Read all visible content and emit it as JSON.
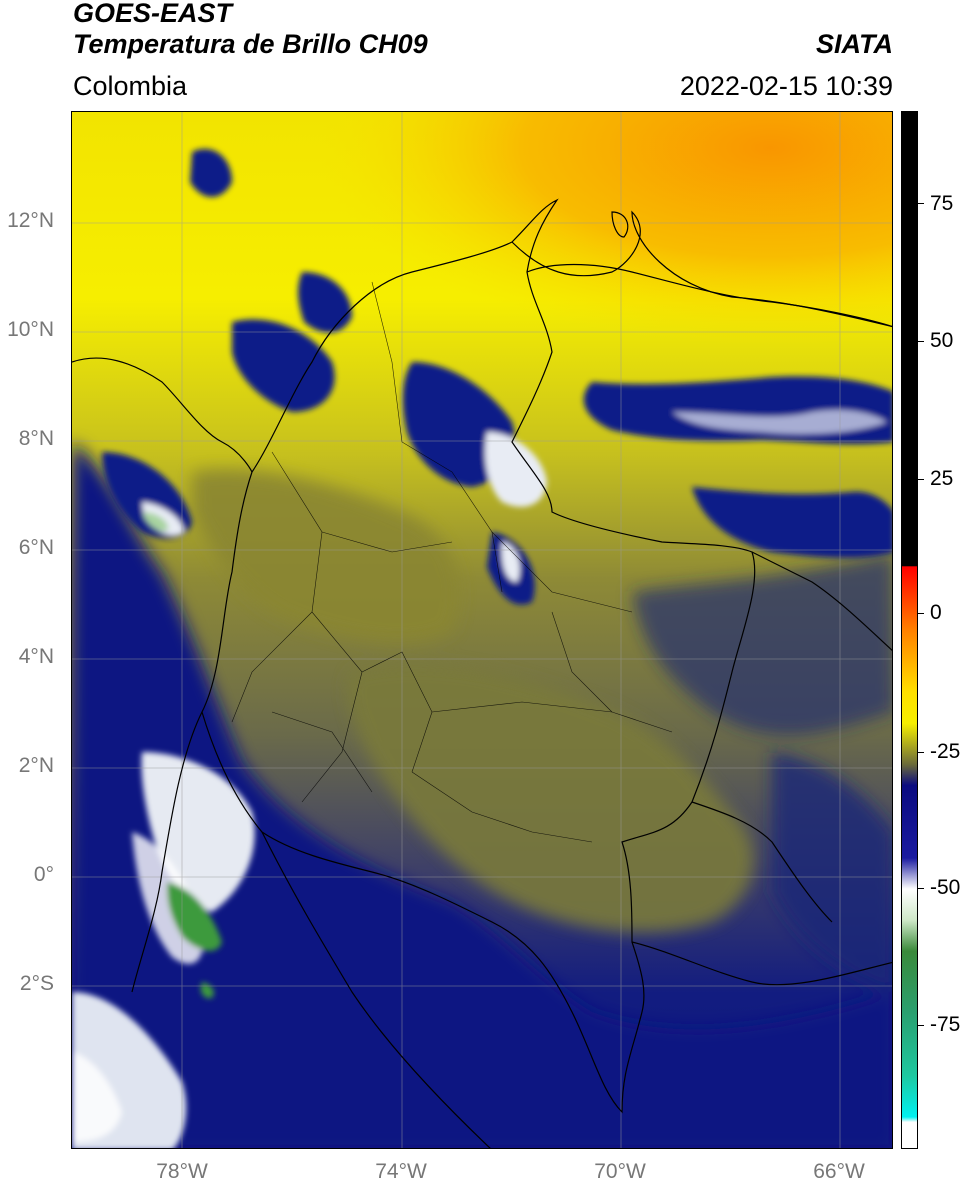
{
  "header": {
    "title_line1": "GOES-EAST",
    "title_line2": "Temperatura de Brillo CH09",
    "brand": "SIATA",
    "region": "Colombia",
    "datetime": "2022-02-15 10:39"
  },
  "map": {
    "lat_labels": [
      "12°N",
      "10°N",
      "8°N",
      "6°N",
      "4°N",
      "2°N",
      "0°",
      "2°S"
    ],
    "lon_labels": [
      "78°W",
      "74°W",
      "70°W",
      "66°W"
    ],
    "colors": {
      "warm_orange": "#f9a400",
      "yellow": "#f8f000",
      "olive": "#7c7c3a",
      "navy": "#0b1680",
      "white_cloud": "#e8ecf4",
      "green_cloud": "#3e9a3e",
      "border": "#000000",
      "grid": "#9a9a9a"
    }
  },
  "colorbar": {
    "tick_labels": [
      "75",
      "50",
      "25",
      "0",
      "-25",
      "-50",
      "-75"
    ],
    "colors": [
      "#000000",
      "#ff0000",
      "#ff8000",
      "#ffe000",
      "#6a6a3a",
      "#0b0b80",
      "#ffffff",
      "#3a8a3a",
      "#1ec8a0",
      "#00f0f0",
      "#ffffff"
    ]
  }
}
